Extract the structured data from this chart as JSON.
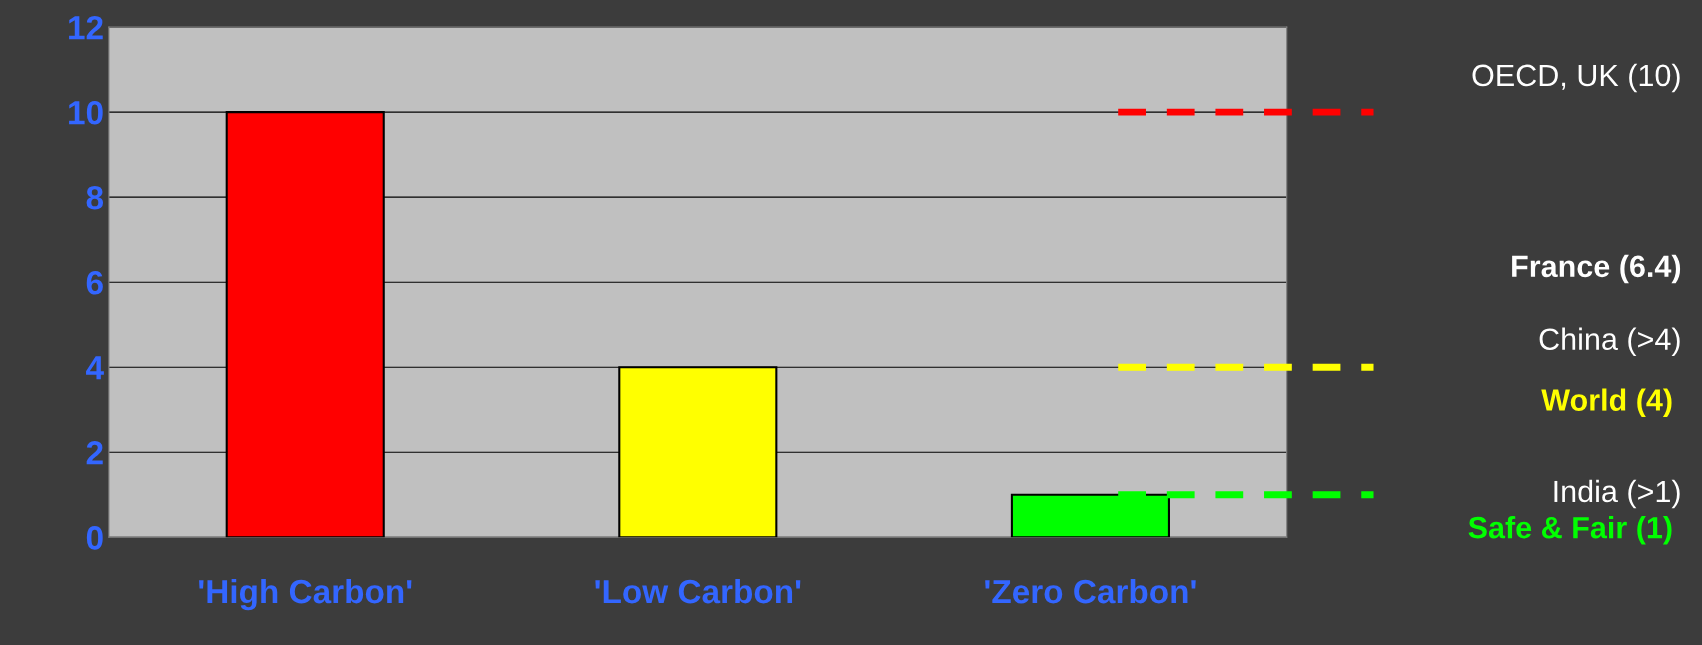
{
  "chart_data": {
    "type": "bar",
    "categories": [
      "'High Carbon'",
      "'Low Carbon'",
      "'Zero Carbon'"
    ],
    "values": [
      10,
      4,
      1
    ],
    "colors": [
      "#ff0000",
      "#ffff00",
      "#00ff00"
    ],
    "ylim": [
      0,
      12
    ],
    "yticks": [
      0,
      2,
      4,
      6,
      8,
      10,
      12
    ],
    "grid": "y",
    "ref_lines": [
      {
        "axis": "y",
        "value": 10,
        "color": "#ff0000",
        "line_style": "dashed"
      },
      {
        "axis": "y",
        "value": 4,
        "color": "#ffff00",
        "line_style": "dashed",
        "label": "World (4)"
      },
      {
        "axis": "y",
        "value": 1,
        "color": "#00ff00",
        "line_style": "dashed",
        "label": "Safe & Fair (1)"
      }
    ],
    "annotations": [
      "OECD, UK (10)",
      "France (6.4)",
      "China (>4)",
      "India (>1)"
    ]
  }
}
